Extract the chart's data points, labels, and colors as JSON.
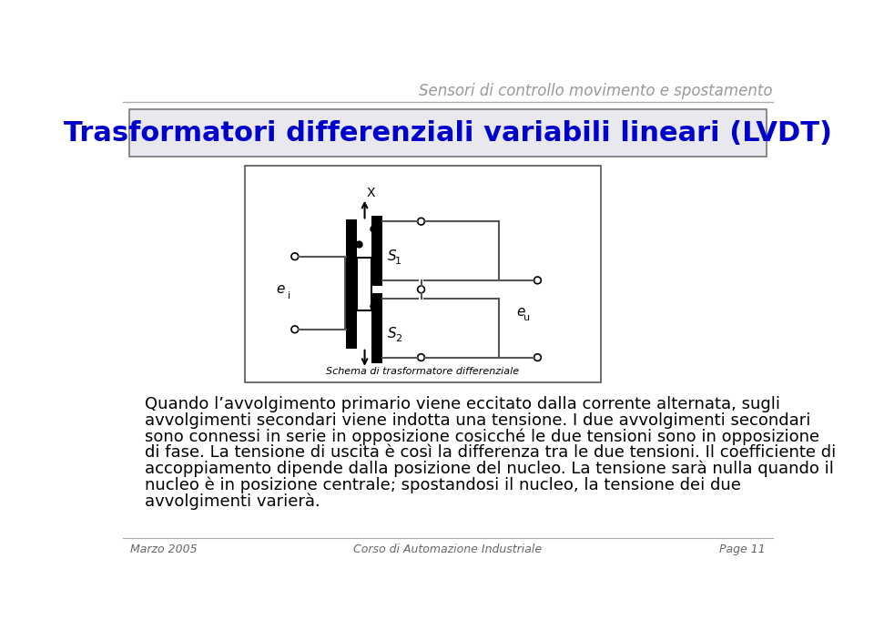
{
  "header_title": "Sensori di controllo movimento e spostamento",
  "slide_title": "Trasformatori differenziali variabili lineari (LVDT)",
  "title_color": "#0000cc",
  "body_text_line1": "Quando l’avvolgimento primario viene eccitato dalla corrente alternata, sugli avvolgimenti secondari viene indotta una tensione. I due avvolgimenti secondari sono connessi in serie in opposizione cosicché le due tensioni sono in opposizione di fase. La tensione di uscita è così la differenza tra le due tensioni. Il coefficiente di accoppiamento dipende dalla posizione del nucleo. La tensione sarà nulla quando il nucleo è in posizione centrale; spostandosi il nucleo, la tensione dei due avvolgimenti varierà.",
  "footer_left": "Marzo 2005",
  "footer_center": "Corso di Automazione Industriale",
  "footer_right": "Page 11",
  "diagram_caption": "Schema di trasformatore differenziale",
  "body_fontsize": 13,
  "header_fontsize": 12,
  "title_fontsize": 22,
  "footer_fontsize": 9
}
